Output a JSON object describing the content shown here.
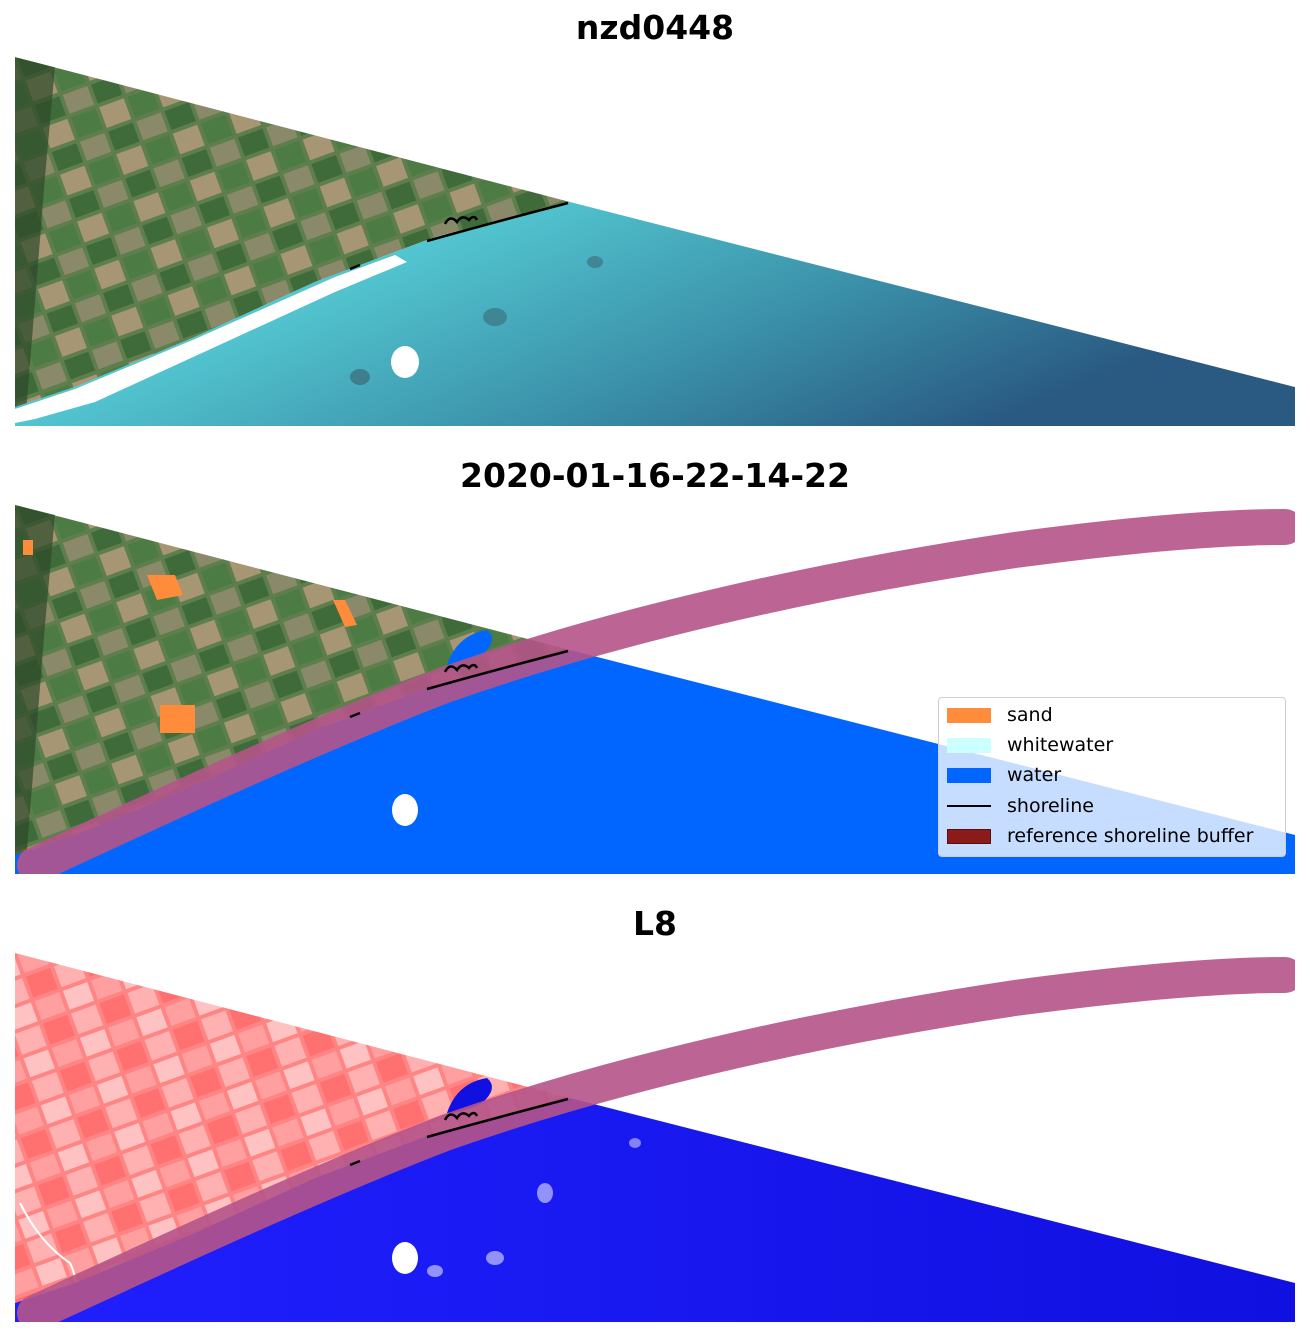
{
  "panels": [
    {
      "title": "nzd0448"
    },
    {
      "title": "2020-01-16-22-14-22"
    },
    {
      "title": "L8"
    }
  ],
  "legend": {
    "items": [
      {
        "label": "sand",
        "color": "#ff8c3a",
        "kind": "patch"
      },
      {
        "label": "whitewater",
        "color": "#ccffff",
        "kind": "patch"
      },
      {
        "label": "water",
        "color": "#0066ff",
        "kind": "patch"
      },
      {
        "label": "shoreline",
        "color": "#000000",
        "kind": "line"
      },
      {
        "label": "reference shoreline buffer",
        "color": "#8b1a1a",
        "kind": "patch"
      }
    ]
  },
  "colors": {
    "land_rgb": "#5d7a4f",
    "ocean_rgb": "#3fa6b4",
    "water_class": "#0066ff",
    "buffer": "#b5548a",
    "land_mndwi": "#ff7a7a",
    "water_mndwi": "#1010f0"
  }
}
